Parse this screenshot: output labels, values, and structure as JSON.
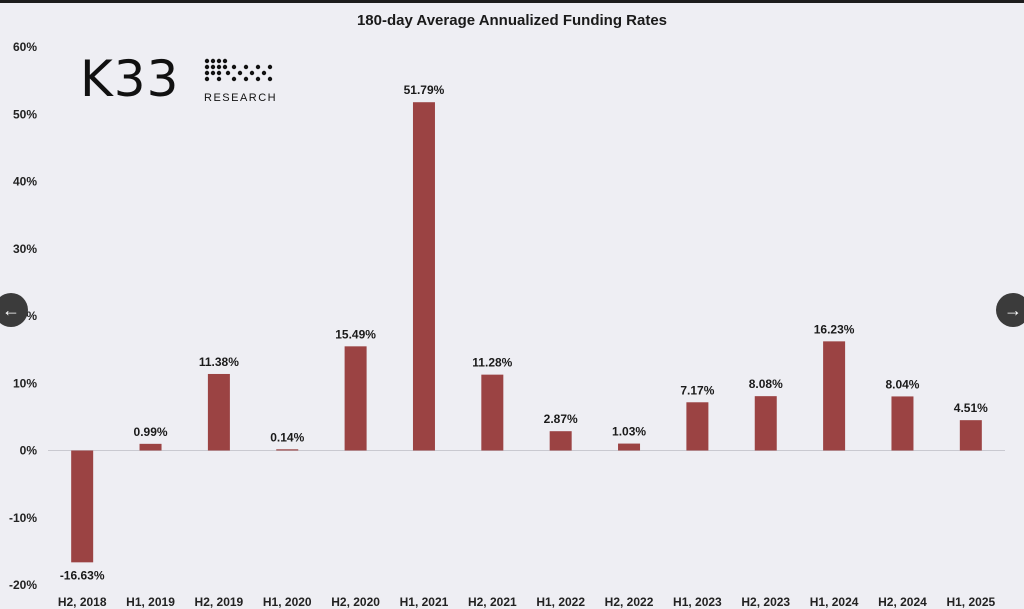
{
  "chart_data": {
    "type": "bar",
    "title": "180-day Average Annualized Funding Rates",
    "categories": [
      "H2, 2018",
      "H1, 2019",
      "H2, 2019",
      "H1, 2020",
      "H2, 2020",
      "H1, 2021",
      "H2, 2021",
      "H1, 2022",
      "H2, 2022",
      "H1, 2023",
      "H2, 2023",
      "H1, 2024",
      "H2, 2024",
      "H1, 2025"
    ],
    "values": [
      -16.63,
      0.99,
      11.38,
      0.14,
      15.49,
      51.79,
      11.28,
      2.87,
      1.03,
      7.17,
      8.08,
      16.23,
      8.04,
      4.51
    ],
    "data_labels": [
      "-16.63%",
      "0.99%",
      "11.38%",
      "0.14%",
      "15.49%",
      "51.79%",
      "11.28%",
      "2.87%",
      "1.03%",
      "7.17%",
      "8.08%",
      "16.23%",
      "8.04%",
      "4.51%"
    ],
    "yticks": [
      -20,
      -10,
      0,
      10,
      20,
      30,
      40,
      50,
      60
    ],
    "ytick_labels": [
      "-20%",
      "-10%",
      "0%",
      "10%",
      "20%",
      "30%",
      "40%",
      "50%",
      "60%"
    ],
    "ylim": [
      -20,
      60
    ],
    "grid": false,
    "bar_color": "#9b4343",
    "xlabel": "",
    "ylabel": ""
  },
  "logo": {
    "name": "K33",
    "subtitle": "RESEARCH"
  },
  "nav": {
    "prev": "←",
    "next": "→"
  }
}
